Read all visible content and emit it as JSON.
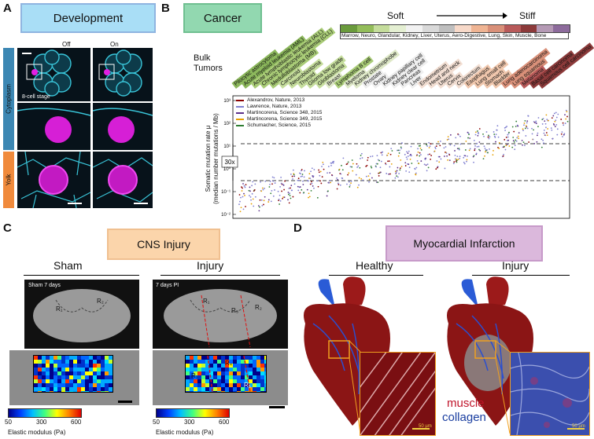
{
  "panels": {
    "a": {
      "letter": "A",
      "title": "Development",
      "col_off": "Off",
      "col_on": "On",
      "stage": "8-cell stage",
      "row_cytoplasm": "Cytoplasm",
      "row_yolk": "Yolk"
    },
    "b": {
      "letter": "B",
      "title": "Cancer",
      "soft": "Soft",
      "stiff": "Stiff",
      "stiffness_caption": "Marrow, Neuro, Glandular, Kidney, Liver, Uterus, Aero-Digestive, Lung, Skin, Muscle, Bone",
      "stiffness_colors": [
        "#6a9b3c",
        "#93bd5a",
        "#c5dd9c",
        "#e4efd2",
        "#f2f2f2",
        "#d9d9d9",
        "#bfbfbf",
        "#f7d9c9",
        "#efb493",
        "#d99079",
        "#b85a5a",
        "#8c3a3a",
        "#b59ab5",
        "#8d6b9c"
      ],
      "bulk": "Bulk Tumors",
      "tumors": [
        {
          "name": "Pilocytic astrocytoma",
          "color": "#8cb85c"
        },
        {
          "name": "Acute myeloid leukemia (AML)",
          "color": "#8cb85c"
        },
        {
          "name": "Acute lymphoblastic leukemia (ALL)",
          "color": "#a9cc77"
        },
        {
          "name": "Chronic lymphocytic leukemia (CLL)",
          "color": "#a9cc77"
        },
        {
          "name": "Medulloblastoma (MB)",
          "color": "#a9cc77"
        },
        {
          "name": "Carcinoid",
          "color": "#c5dd9c"
        },
        {
          "name": "Neuroblastoma",
          "color": "#c5dd9c"
        },
        {
          "name": "Thyroid",
          "color": "#c5dd9c"
        },
        {
          "name": "Glioma low grade",
          "color": "#c5dd9c"
        },
        {
          "name": "Glioblastoma",
          "color": "#c5dd9c"
        },
        {
          "name": "Breast",
          "color": "#dfe9c8"
        },
        {
          "name": "Lymphoma B cell",
          "color": "#a9cc77"
        },
        {
          "name": "Myeloma",
          "color": "#dfe9c8"
        },
        {
          "name": "Kidney chromophobe",
          "color": "#dfe9c8"
        },
        {
          "name": "Prostate",
          "color": "#eeeeee"
        },
        {
          "name": "Ovary",
          "color": "#eeeeee"
        },
        {
          "name": "Kidney papillary cell",
          "color": "#eeeeee"
        },
        {
          "name": "Kidney clear cell",
          "color": "#eeeeee"
        },
        {
          "name": "Pancreas",
          "color": "#eeeeee"
        },
        {
          "name": "Liver",
          "color": "#eeeeee"
        },
        {
          "name": "Endometrium",
          "color": "#f2ded2"
        },
        {
          "name": "Head and neck",
          "color": "#f2ded2"
        },
        {
          "name": "Uterus",
          "color": "#f2ded2"
        },
        {
          "name": "Cervix",
          "color": "#f2ded2"
        },
        {
          "name": "Colorectum",
          "color": "#f2ded2"
        },
        {
          "name": "Esophagus",
          "color": "#f0c7ad"
        },
        {
          "name": "Lung small cell",
          "color": "#f0c7ad"
        },
        {
          "name": "Stomach",
          "color": "#f0c7ad"
        },
        {
          "name": "Bladder",
          "color": "#f0c7ad"
        },
        {
          "name": "Lung adenocarcinoma",
          "color": "#d99079"
        },
        {
          "name": "Lung squamous",
          "color": "#d99079"
        },
        {
          "name": "Melanoma",
          "color": "#b85a5a"
        },
        {
          "name": "Basal cell carcinoma",
          "color": "#8c3a3a"
        },
        {
          "name": "Squamous cell carcinoma",
          "color": "#8c3a3a"
        }
      ],
      "ylabel": "Somatic mutation rate μ",
      "ylabel2": "(median number mutations / Mb)",
      "fold": "30x",
      "ticks": [
        "10³",
        "10²",
        "10¹",
        "10⁰",
        "10⁻¹",
        "10⁻²"
      ],
      "legend": [
        {
          "text": "Alexandrov, Nature, 2013",
          "color": "#8b0000"
        },
        {
          "text": "Lawrence, Nature, 2013",
          "color": "#7f7fd0"
        },
        {
          "text": "Martincorena, Science 348, 2015",
          "color": "#5b2f8a"
        },
        {
          "text": "Martincorena, Science 349, 2015",
          "color": "#e69f00"
        },
        {
          "text": "Schumacher, Science, 2015",
          "color": "#2e7d32"
        }
      ]
    },
    "c": {
      "letter": "C",
      "title": "CNS Injury",
      "sham": "Sham",
      "injury": "Injury",
      "sham_label": "Sham 7 days",
      "injury_label": "7 days PI",
      "r1": "R₁",
      "r2": "R₂",
      "r3": "R₃",
      "r4": "R₄",
      "r5": "R₅",
      "cbar_min": "50",
      "cbar_mid": "300",
      "cbar_max": "600",
      "cbar_label": "Elastic modulus (Pa)"
    },
    "d": {
      "letter": "D",
      "title": "Myocardial Infarction",
      "healthy": "Healthy",
      "injury": "Injury",
      "muscle": "muscle",
      "collagen": "collagen",
      "scale": "50 µm"
    }
  }
}
